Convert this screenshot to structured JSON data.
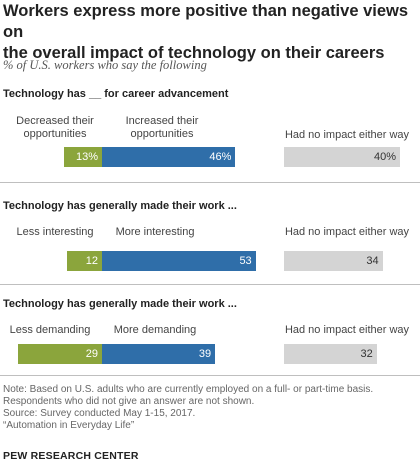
{
  "header": {
    "title_line1": "Workers express more positive than negative views on",
    "title_line2": "the overall impact of technology on their careers",
    "subtitle": "% of U.S. workers who say the following"
  },
  "colors": {
    "negative": "#8ba53c",
    "positive": "#2f6ea9",
    "neutral": "#d4d4d4",
    "value_on_dark": "#ffffff",
    "value_on_light": "#333333"
  },
  "chart_data": {
    "type": "bar",
    "orientation": "horizontal",
    "stacked": "diverging",
    "panels": [
      {
        "heading": "Technology has __ for career advancement",
        "categories": [
          {
            "label_lines": [
              "Decreased their",
              "opportunities"
            ],
            "value": 13,
            "value_label": "13%"
          },
          {
            "label_lines": [
              "Increased their",
              "opportunities"
            ],
            "value": 46,
            "value_label": "46%"
          },
          {
            "label_lines": [
              "Had no impact either way"
            ],
            "value": 40,
            "value_label": "40%"
          }
        ]
      },
      {
        "heading": "Technology has generally made their work ...",
        "categories": [
          {
            "label_lines": [
              "Less interesting"
            ],
            "value": 12,
            "value_label": "12"
          },
          {
            "label_lines": [
              "More interesting"
            ],
            "value": 53,
            "value_label": "53"
          },
          {
            "label_lines": [
              "Had no impact either way"
            ],
            "value": 34,
            "value_label": "34"
          }
        ]
      },
      {
        "heading": "Technology has generally made their work ...",
        "categories": [
          {
            "label_lines": [
              "Less demanding"
            ],
            "value": 29,
            "value_label": "29"
          },
          {
            "label_lines": [
              "More demanding"
            ],
            "value": 39,
            "value_label": "39"
          },
          {
            "label_lines": [
              "Had no impact either way"
            ],
            "value": 32,
            "value_label": "32"
          }
        ]
      }
    ]
  },
  "notes": {
    "line1": "Note: Based on U.S. adults who are currently employed on a full- or part-time basis.",
    "line2": "Respondents who did not give an answer are not shown.",
    "line3": "Source: Survey conducted May 1-15, 2017.",
    "line4": "“Automation in Everyday Life”"
  },
  "source_org": "PEW RESEARCH CENTER"
}
